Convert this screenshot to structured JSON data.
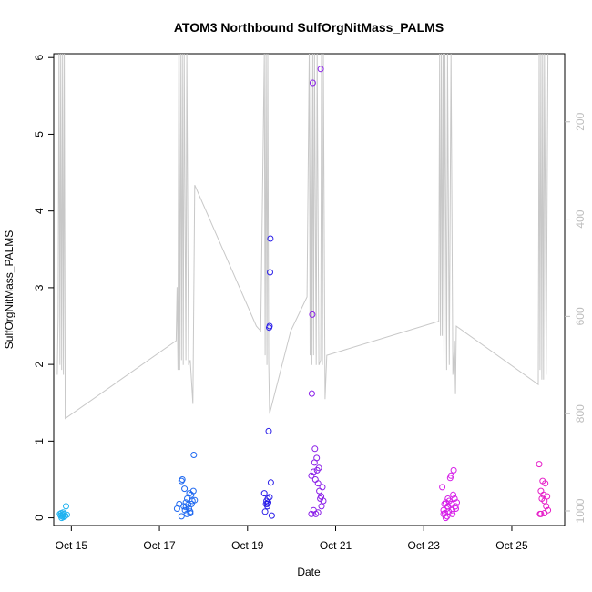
{
  "chart_data": {
    "type": "scatter",
    "title": "ATOM3 Northbound SulfOrgNitMass_PALMS",
    "xlabel": "Date",
    "ylabel": "SulfOrgNitMass_PALMS",
    "x_units": "days (Oct)",
    "x_ticks": [
      {
        "value": 15,
        "label": "Oct 15"
      },
      {
        "value": 17,
        "label": "Oct 17"
      },
      {
        "value": 19,
        "label": "Oct 19"
      },
      {
        "value": 21,
        "label": "Oct 21"
      },
      {
        "value": 23,
        "label": "Oct 23"
      },
      {
        "value": 25,
        "label": "Oct 25"
      }
    ],
    "xlim": [
      14.6,
      26.2
    ],
    "ylim": [
      -0.1,
      6.05
    ],
    "y_ticks": [
      0,
      1,
      2,
      3,
      4,
      5,
      6
    ],
    "y2_ticks": [
      200,
      400,
      600,
      800,
      1000
    ],
    "y2lim": [
      1030,
      60
    ],
    "y2_reversed": true,
    "grid": false,
    "marker": "open-circle",
    "series": [
      {
        "color": "#1fb2f0",
        "points": [
          [
            14.74,
            0.05
          ],
          [
            14.76,
            0.03
          ],
          [
            14.77,
            0.06
          ],
          [
            14.79,
            0.02
          ],
          [
            14.8,
            0.04
          ],
          [
            14.82,
            0.01
          ],
          [
            14.83,
            0.05
          ],
          [
            14.85,
            0.02
          ],
          [
            14.86,
            0.03
          ],
          [
            14.88,
            0.15
          ],
          [
            14.9,
            0.04
          ],
          [
            14.78,
            0.0
          ],
          [
            14.81,
            0.07
          ]
        ]
      },
      {
        "color": "#1e68f0",
        "points": [
          [
            17.4,
            0.12
          ],
          [
            17.45,
            0.18
          ],
          [
            17.5,
            0.48
          ],
          [
            17.52,
            0.5
          ],
          [
            17.55,
            0.15
          ],
          [
            17.57,
            0.38
          ],
          [
            17.58,
            0.1
          ],
          [
            17.6,
            0.2
          ],
          [
            17.62,
            0.05
          ],
          [
            17.63,
            0.25
          ],
          [
            17.65,
            0.17
          ],
          [
            17.67,
            0.12
          ],
          [
            17.68,
            0.32
          ],
          [
            17.7,
            0.08
          ],
          [
            17.72,
            0.3
          ],
          [
            17.73,
            0.18
          ],
          [
            17.75,
            0.22
          ],
          [
            17.77,
            0.35
          ],
          [
            17.78,
            0.82
          ],
          [
            17.8,
            0.23
          ],
          [
            17.5,
            0.02
          ],
          [
            17.6,
            0.14
          ],
          [
            17.7,
            0.06
          ]
        ]
      },
      {
        "color": "#2a1ee8",
        "points": [
          [
            19.38,
            0.32
          ],
          [
            19.4,
            0.08
          ],
          [
            19.42,
            0.18
          ],
          [
            19.43,
            0.22
          ],
          [
            19.45,
            0.15
          ],
          [
            19.46,
            0.25
          ],
          [
            19.47,
            0.2
          ],
          [
            19.48,
            1.13
          ],
          [
            19.49,
            2.48
          ],
          [
            19.5,
            2.5
          ],
          [
            19.51,
            3.2
          ],
          [
            19.52,
            3.64
          ],
          [
            19.53,
            0.46
          ],
          [
            19.55,
            0.03
          ],
          [
            19.45,
            0.18
          ],
          [
            19.5,
            0.27
          ]
        ]
      },
      {
        "color": "#8a1ee8",
        "points": [
          [
            20.45,
            0.55
          ],
          [
            20.46,
            1.62
          ],
          [
            20.47,
            2.65
          ],
          [
            20.48,
            5.67
          ],
          [
            20.5,
            0.6
          ],
          [
            20.52,
            0.72
          ],
          [
            20.53,
            0.9
          ],
          [
            20.54,
            0.5
          ],
          [
            20.55,
            0.05
          ],
          [
            20.57,
            0.78
          ],
          [
            20.58,
            0.62
          ],
          [
            20.6,
            0.45
          ],
          [
            20.62,
            0.65
          ],
          [
            20.63,
            0.35
          ],
          [
            20.65,
            0.25
          ],
          [
            20.66,
            5.85
          ],
          [
            20.67,
            0.28
          ],
          [
            20.68,
            0.15
          ],
          [
            20.7,
            0.4
          ],
          [
            20.72,
            0.22
          ],
          [
            20.5,
            0.1
          ],
          [
            20.6,
            0.07
          ],
          [
            20.45,
            0.05
          ]
        ]
      },
      {
        "color": "#d61ee8",
        "points": [
          [
            23.42,
            0.4
          ],
          [
            23.45,
            0.1
          ],
          [
            23.47,
            0.18
          ],
          [
            23.48,
            0.06
          ],
          [
            23.5,
            0.2
          ],
          [
            23.52,
            0.12
          ],
          [
            23.53,
            0.02
          ],
          [
            23.55,
            0.15
          ],
          [
            23.57,
            0.08
          ],
          [
            23.58,
            0.22
          ],
          [
            23.6,
            0.52
          ],
          [
            23.62,
            0.55
          ],
          [
            23.63,
            0.18
          ],
          [
            23.65,
            0.1
          ],
          [
            23.67,
            0.3
          ],
          [
            23.68,
            0.62
          ],
          [
            23.7,
            0.25
          ],
          [
            23.72,
            0.15
          ],
          [
            23.73,
            0.12
          ],
          [
            23.75,
            0.2
          ],
          [
            23.45,
            0.05
          ],
          [
            23.55,
            0.25
          ],
          [
            23.65,
            0.05
          ],
          [
            23.5,
            0.0
          ]
        ]
      },
      {
        "color": "#e61ec8",
        "points": [
          [
            25.62,
            0.7
          ],
          [
            25.64,
            0.05
          ],
          [
            25.66,
            0.35
          ],
          [
            25.68,
            0.25
          ],
          [
            25.7,
            0.48
          ],
          [
            25.72,
            0.3
          ],
          [
            25.74,
            0.06
          ],
          [
            25.76,
            0.45
          ],
          [
            25.78,
            0.15
          ],
          [
            25.8,
            0.28
          ],
          [
            25.82,
            0.1
          ],
          [
            25.66,
            0.05
          ],
          [
            25.74,
            0.22
          ]
        ]
      }
    ],
    "altitude_line": {
      "color": "#c8c8c8",
      "axis": "y2",
      "points": [
        [
          14.68,
          720
        ],
        [
          14.7,
          600
        ],
        [
          14.72,
          60
        ],
        [
          14.74,
          700
        ],
        [
          14.76,
          60
        ],
        [
          14.78,
          710
        ],
        [
          14.8,
          60
        ],
        [
          14.82,
          720
        ],
        [
          14.84,
          60
        ],
        [
          14.86,
          810
        ],
        [
          17.38,
          650
        ],
        [
          17.4,
          540
        ],
        [
          17.42,
          710
        ],
        [
          17.44,
          60
        ],
        [
          17.46,
          710
        ],
        [
          17.48,
          60
        ],
        [
          17.5,
          690
        ],
        [
          17.52,
          60
        ],
        [
          17.54,
          700
        ],
        [
          17.56,
          60
        ],
        [
          17.6,
          690
        ],
        [
          17.62,
          60
        ],
        [
          17.66,
          700
        ],
        [
          17.7,
          690
        ],
        [
          17.76,
          780
        ],
        [
          17.8,
          330
        ],
        [
          19.2,
          620
        ],
        [
          19.3,
          630
        ],
        [
          19.38,
          60
        ],
        [
          19.4,
          680
        ],
        [
          19.42,
          60
        ],
        [
          19.44,
          700
        ],
        [
          19.46,
          60
        ],
        [
          19.48,
          690
        ],
        [
          19.5,
          800
        ],
        [
          19.98,
          630
        ],
        [
          20.35,
          560
        ],
        [
          20.4,
          60
        ],
        [
          20.42,
          680
        ],
        [
          20.44,
          60
        ],
        [
          20.46,
          700
        ],
        [
          20.48,
          60
        ],
        [
          20.5,
          680
        ],
        [
          20.52,
          60
        ],
        [
          20.56,
          700
        ],
        [
          20.58,
          60
        ],
        [
          20.62,
          700
        ],
        [
          20.66,
          690
        ],
        [
          20.68,
          60
        ],
        [
          20.7,
          700
        ],
        [
          20.72,
          60
        ],
        [
          20.76,
          770
        ],
        [
          20.8,
          680
        ],
        [
          23.34,
          610
        ],
        [
          23.36,
          60
        ],
        [
          23.38,
          640
        ],
        [
          23.4,
          60
        ],
        [
          23.42,
          640
        ],
        [
          23.44,
          60
        ],
        [
          23.46,
          700
        ],
        [
          23.48,
          60
        ],
        [
          23.52,
          710
        ],
        [
          23.54,
          60
        ],
        [
          23.58,
          700
        ],
        [
          23.62,
          60
        ],
        [
          23.66,
          720
        ],
        [
          23.7,
          650
        ],
        [
          23.72,
          760
        ],
        [
          23.74,
          620
        ],
        [
          25.6,
          740
        ],
        [
          25.62,
          60
        ],
        [
          25.64,
          710
        ],
        [
          25.66,
          60
        ],
        [
          25.68,
          730
        ],
        [
          25.7,
          60
        ],
        [
          25.72,
          730
        ],
        [
          25.74,
          60
        ],
        [
          25.78,
          720
        ],
        [
          25.82,
          60
        ]
      ]
    }
  }
}
